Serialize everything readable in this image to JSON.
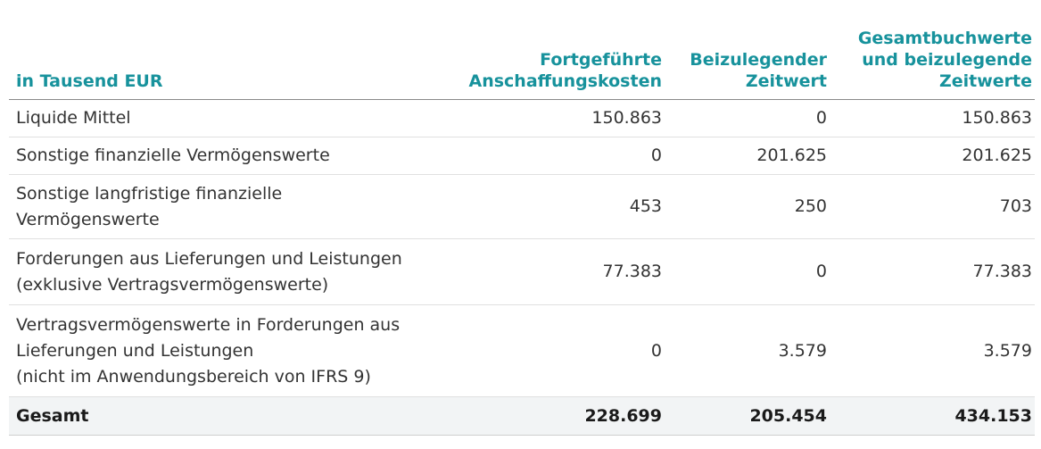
{
  "table": {
    "header": {
      "label": "in Tausend EUR",
      "col1": [
        "Fortgeführte",
        "Anschaffungskosten"
      ],
      "col2": [
        "Beizulegender",
        "Zeitwert"
      ],
      "col3": [
        "Gesamtbuchwerte",
        "und beizulegende",
        "Zeitwerte"
      ]
    },
    "rows": [
      {
        "label": [
          "Liquide Mittel"
        ],
        "col1": "150.863",
        "col2": "0",
        "col3": "150.863"
      },
      {
        "label": [
          "Sonstige finanzielle Vermögenswerte"
        ],
        "col1": "0",
        "col2": "201.625",
        "col3": "201.625"
      },
      {
        "label": [
          "Sonstige langfristige finanzielle",
          "Vermögenswerte"
        ],
        "col1": "453",
        "col2": "250",
        "col3": "703"
      },
      {
        "label": [
          "Forderungen aus Lieferungen und Leistungen",
          "(exklusive Vertragsvermögenswerte)"
        ],
        "col1": "77.383",
        "col2": "0",
        "col3": "77.383"
      },
      {
        "label": [
          "Vertragsvermögenswerte in Forderungen aus",
          "Lieferungen und Leistungen",
          "(nicht im Anwendungsbereich von IFRS 9)"
        ],
        "col1": "0",
        "col2": "3.579",
        "col3": "3.579"
      }
    ],
    "total": {
      "label": "Gesamt",
      "col1": "228.699",
      "col2": "205.454",
      "col3": "434.153"
    }
  },
  "colors": {
    "header_text": "#17929c",
    "body_text": "#333333",
    "total_background": "#f2f4f5"
  }
}
